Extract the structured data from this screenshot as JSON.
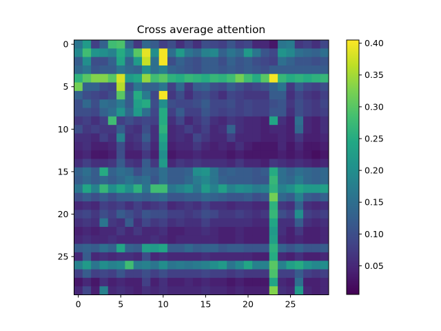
{
  "chart_data": {
    "type": "heatmap",
    "title": "Cross average attention",
    "xlabel": "",
    "ylabel": "",
    "colormap": "viridis",
    "color_range": [
      0.005,
      0.405
    ],
    "rows": 30,
    "cols": 30,
    "x_ticks": [
      0,
      5,
      10,
      15,
      20,
      25
    ],
    "y_ticks": [
      0,
      5,
      10,
      15,
      20,
      25
    ],
    "colorbar_ticks": [
      "0.05",
      "0.10",
      "0.15",
      "0.20",
      "0.25",
      "0.30",
      "0.35",
      "0.40"
    ],
    "colorbar_tick_values": [
      0.05,
      0.1,
      0.15,
      0.2,
      0.25,
      0.3,
      0.35,
      0.4
    ],
    "values": [
      [
        0.16,
        0.22,
        0.08,
        0.13,
        0.28,
        0.29,
        0.13,
        0.07,
        0.14,
        0.12,
        0.08,
        0.1,
        0.06,
        0.09,
        0.06,
        0.1,
        0.09,
        0.08,
        0.11,
        0.08,
        0.09,
        0.05,
        0.05,
        0.03,
        0.16,
        0.17,
        0.07,
        0.08,
        0.06,
        0.09
      ],
      [
        0.19,
        0.28,
        0.21,
        0.2,
        0.18,
        0.25,
        0.19,
        0.3,
        0.39,
        0.2,
        0.4,
        0.15,
        0.22,
        0.16,
        0.14,
        0.18,
        0.19,
        0.13,
        0.16,
        0.14,
        0.22,
        0.16,
        0.11,
        0.09,
        0.21,
        0.19,
        0.15,
        0.14,
        0.13,
        0.15
      ],
      [
        0.12,
        0.2,
        0.1,
        0.1,
        0.13,
        0.24,
        0.13,
        0.22,
        0.37,
        0.15,
        0.4,
        0.1,
        0.13,
        0.11,
        0.1,
        0.12,
        0.12,
        0.1,
        0.13,
        0.11,
        0.12,
        0.1,
        0.09,
        0.08,
        0.15,
        0.13,
        0.11,
        0.11,
        0.1,
        0.11
      ],
      [
        0.14,
        0.16,
        0.11,
        0.12,
        0.12,
        0.16,
        0.14,
        0.13,
        0.2,
        0.15,
        0.18,
        0.13,
        0.12,
        0.11,
        0.1,
        0.12,
        0.12,
        0.11,
        0.12,
        0.11,
        0.12,
        0.11,
        0.1,
        0.12,
        0.12,
        0.12,
        0.12,
        0.12,
        0.12,
        0.12
      ],
      [
        0.26,
        0.3,
        0.33,
        0.33,
        0.3,
        0.38,
        0.22,
        0.24,
        0.34,
        0.28,
        0.3,
        0.26,
        0.25,
        0.27,
        0.26,
        0.25,
        0.27,
        0.26,
        0.28,
        0.32,
        0.28,
        0.25,
        0.3,
        0.4,
        0.27,
        0.25,
        0.26,
        0.25,
        0.26,
        0.27
      ],
      [
        0.32,
        0.13,
        0.13,
        0.1,
        0.09,
        0.36,
        0.1,
        0.16,
        0.13,
        0.13,
        0.16,
        0.08,
        0.14,
        0.07,
        0.12,
        0.13,
        0.1,
        0.09,
        0.12,
        0.1,
        0.08,
        0.09,
        0.1,
        0.13,
        0.16,
        0.07,
        0.12,
        0.09,
        0.08,
        0.1
      ],
      [
        0.13,
        0.1,
        0.09,
        0.08,
        0.1,
        0.3,
        0.12,
        0.25,
        0.17,
        0.09,
        0.4,
        0.07,
        0.1,
        0.06,
        0.09,
        0.1,
        0.08,
        0.06,
        0.09,
        0.08,
        0.07,
        0.07,
        0.07,
        0.12,
        0.12,
        0.06,
        0.09,
        0.07,
        0.06,
        0.08
      ],
      [
        0.1,
        0.14,
        0.1,
        0.15,
        0.14,
        0.17,
        0.12,
        0.23,
        0.25,
        0.1,
        0.2,
        0.1,
        0.09,
        0.09,
        0.1,
        0.12,
        0.09,
        0.09,
        0.1,
        0.08,
        0.09,
        0.08,
        0.08,
        0.1,
        0.11,
        0.07,
        0.1,
        0.08,
        0.07,
        0.09
      ],
      [
        0.1,
        0.1,
        0.09,
        0.13,
        0.15,
        0.21,
        0.14,
        0.22,
        0.15,
        0.09,
        0.25,
        0.08,
        0.12,
        0.08,
        0.08,
        0.11,
        0.09,
        0.08,
        0.09,
        0.08,
        0.09,
        0.08,
        0.08,
        0.11,
        0.11,
        0.06,
        0.1,
        0.08,
        0.07,
        0.08
      ],
      [
        0.07,
        0.08,
        0.06,
        0.08,
        0.28,
        0.08,
        0.1,
        0.08,
        0.09,
        0.08,
        0.25,
        0.06,
        0.09,
        0.05,
        0.07,
        0.09,
        0.06,
        0.05,
        0.07,
        0.06,
        0.05,
        0.05,
        0.04,
        0.24,
        0.06,
        0.04,
        0.15,
        0.05,
        0.04,
        0.06
      ],
      [
        0.1,
        0.07,
        0.08,
        0.07,
        0.07,
        0.12,
        0.07,
        0.06,
        0.1,
        0.06,
        0.26,
        0.05,
        0.06,
        0.08,
        0.06,
        0.08,
        0.05,
        0.06,
        0.13,
        0.06,
        0.05,
        0.05,
        0.04,
        0.05,
        0.05,
        0.04,
        0.14,
        0.05,
        0.04,
        0.06
      ],
      [
        0.06,
        0.06,
        0.05,
        0.08,
        0.06,
        0.18,
        0.06,
        0.07,
        0.12,
        0.06,
        0.24,
        0.05,
        0.06,
        0.05,
        0.09,
        0.07,
        0.05,
        0.05,
        0.08,
        0.05,
        0.05,
        0.05,
        0.04,
        0.04,
        0.05,
        0.04,
        0.07,
        0.04,
        0.04,
        0.05
      ],
      [
        0.05,
        0.06,
        0.04,
        0.04,
        0.05,
        0.1,
        0.05,
        0.06,
        0.09,
        0.05,
        0.22,
        0.04,
        0.05,
        0.05,
        0.07,
        0.05,
        0.04,
        0.05,
        0.04,
        0.06,
        0.04,
        0.03,
        0.03,
        0.03,
        0.05,
        0.03,
        0.05,
        0.03,
        0.03,
        0.04
      ],
      [
        0.04,
        0.05,
        0.03,
        0.03,
        0.04,
        0.1,
        0.04,
        0.04,
        0.07,
        0.04,
        0.2,
        0.03,
        0.04,
        0.04,
        0.05,
        0.04,
        0.04,
        0.04,
        0.03,
        0.04,
        0.03,
        0.03,
        0.03,
        0.03,
        0.04,
        0.03,
        0.04,
        0.03,
        0.02,
        0.03
      ],
      [
        0.06,
        0.08,
        0.06,
        0.06,
        0.07,
        0.12,
        0.07,
        0.06,
        0.12,
        0.07,
        0.22,
        0.05,
        0.07,
        0.06,
        0.07,
        0.06,
        0.06,
        0.06,
        0.05,
        0.07,
        0.05,
        0.05,
        0.04,
        0.07,
        0.06,
        0.05,
        0.06,
        0.05,
        0.04,
        0.05
      ],
      [
        0.13,
        0.15,
        0.12,
        0.25,
        0.13,
        0.15,
        0.14,
        0.1,
        0.13,
        0.12,
        0.15,
        0.12,
        0.12,
        0.13,
        0.2,
        0.21,
        0.16,
        0.12,
        0.13,
        0.12,
        0.12,
        0.11,
        0.12,
        0.25,
        0.15,
        0.13,
        0.15,
        0.14,
        0.13,
        0.14
      ],
      [
        0.12,
        0.14,
        0.12,
        0.14,
        0.12,
        0.14,
        0.16,
        0.14,
        0.15,
        0.11,
        0.15,
        0.12,
        0.12,
        0.14,
        0.17,
        0.19,
        0.16,
        0.13,
        0.12,
        0.12,
        0.12,
        0.11,
        0.11,
        0.27,
        0.15,
        0.14,
        0.17,
        0.14,
        0.13,
        0.14
      ],
      [
        0.16,
        0.24,
        0.18,
        0.27,
        0.2,
        0.24,
        0.2,
        0.26,
        0.16,
        0.28,
        0.28,
        0.16,
        0.18,
        0.2,
        0.16,
        0.22,
        0.18,
        0.23,
        0.18,
        0.2,
        0.19,
        0.17,
        0.18,
        0.26,
        0.18,
        0.2,
        0.24,
        0.22,
        0.22,
        0.23
      ],
      [
        0.1,
        0.12,
        0.1,
        0.12,
        0.1,
        0.12,
        0.12,
        0.13,
        0.12,
        0.13,
        0.14,
        0.11,
        0.11,
        0.12,
        0.12,
        0.14,
        0.13,
        0.12,
        0.11,
        0.11,
        0.12,
        0.1,
        0.11,
        0.32,
        0.14,
        0.12,
        0.18,
        0.12,
        0.11,
        0.13
      ],
      [
        0.05,
        0.06,
        0.05,
        0.08,
        0.07,
        0.08,
        0.06,
        0.08,
        0.06,
        0.07,
        0.08,
        0.05,
        0.06,
        0.07,
        0.06,
        0.08,
        0.06,
        0.06,
        0.05,
        0.06,
        0.06,
        0.05,
        0.05,
        0.26,
        0.07,
        0.06,
        0.13,
        0.06,
        0.05,
        0.06
      ],
      [
        0.08,
        0.09,
        0.07,
        0.1,
        0.08,
        0.12,
        0.1,
        0.08,
        0.11,
        0.1,
        0.1,
        0.08,
        0.08,
        0.07,
        0.08,
        0.1,
        0.09,
        0.07,
        0.07,
        0.08,
        0.07,
        0.06,
        0.07,
        0.27,
        0.1,
        0.08,
        0.2,
        0.08,
        0.07,
        0.08
      ],
      [
        0.06,
        0.07,
        0.06,
        0.16,
        0.07,
        0.06,
        0.12,
        0.06,
        0.09,
        0.07,
        0.08,
        0.06,
        0.07,
        0.06,
        0.06,
        0.08,
        0.06,
        0.06,
        0.06,
        0.06,
        0.06,
        0.05,
        0.05,
        0.24,
        0.06,
        0.06,
        0.12,
        0.06,
        0.05,
        0.06
      ],
      [
        0.04,
        0.05,
        0.04,
        0.05,
        0.05,
        0.07,
        0.05,
        0.07,
        0.05,
        0.05,
        0.06,
        0.04,
        0.04,
        0.05,
        0.05,
        0.06,
        0.05,
        0.04,
        0.04,
        0.05,
        0.04,
        0.04,
        0.04,
        0.22,
        0.06,
        0.04,
        0.07,
        0.04,
        0.04,
        0.05
      ],
      [
        0.05,
        0.06,
        0.05,
        0.05,
        0.06,
        0.05,
        0.05,
        0.05,
        0.05,
        0.06,
        0.05,
        0.04,
        0.05,
        0.05,
        0.05,
        0.05,
        0.05,
        0.04,
        0.04,
        0.05,
        0.04,
        0.04,
        0.04,
        0.23,
        0.05,
        0.04,
        0.05,
        0.04,
        0.04,
        0.05
      ],
      [
        0.12,
        0.13,
        0.12,
        0.15,
        0.13,
        0.24,
        0.13,
        0.12,
        0.23,
        0.22,
        0.24,
        0.12,
        0.12,
        0.14,
        0.12,
        0.13,
        0.13,
        0.11,
        0.12,
        0.12,
        0.11,
        0.11,
        0.11,
        0.26,
        0.13,
        0.11,
        0.13,
        0.11,
        0.11,
        0.12
      ],
      [
        0.05,
        0.12,
        0.05,
        0.06,
        0.05,
        0.06,
        0.06,
        0.05,
        0.1,
        0.05,
        0.06,
        0.05,
        0.05,
        0.05,
        0.05,
        0.06,
        0.05,
        0.05,
        0.05,
        0.05,
        0.05,
        0.04,
        0.04,
        0.25,
        0.05,
        0.04,
        0.06,
        0.04,
        0.04,
        0.05
      ],
      [
        0.18,
        0.22,
        0.16,
        0.2,
        0.18,
        0.19,
        0.28,
        0.17,
        0.18,
        0.16,
        0.2,
        0.16,
        0.17,
        0.16,
        0.17,
        0.18,
        0.2,
        0.22,
        0.16,
        0.19,
        0.24,
        0.18,
        0.18,
        0.3,
        0.18,
        0.23,
        0.25,
        0.21,
        0.19,
        0.2
      ],
      [
        0.08,
        0.12,
        0.08,
        0.09,
        0.08,
        0.11,
        0.08,
        0.08,
        0.1,
        0.08,
        0.1,
        0.08,
        0.08,
        0.08,
        0.08,
        0.09,
        0.08,
        0.08,
        0.07,
        0.08,
        0.07,
        0.07,
        0.07,
        0.29,
        0.08,
        0.08,
        0.12,
        0.08,
        0.07,
        0.08
      ],
      [
        0.03,
        0.05,
        0.03,
        0.06,
        0.04,
        0.05,
        0.04,
        0.04,
        0.08,
        0.04,
        0.06,
        0.04,
        0.04,
        0.05,
        0.04,
        0.05,
        0.04,
        0.04,
        0.03,
        0.04,
        0.03,
        0.03,
        0.03,
        0.24,
        0.05,
        0.04,
        0.15,
        0.04,
        0.04,
        0.05
      ],
      [
        0.05,
        0.09,
        0.04,
        0.18,
        0.05,
        0.06,
        0.05,
        0.04,
        0.06,
        0.05,
        0.06,
        0.05,
        0.05,
        0.05,
        0.05,
        0.06,
        0.05,
        0.05,
        0.04,
        0.05,
        0.04,
        0.04,
        0.04,
        0.33,
        0.06,
        0.05,
        0.22,
        0.05,
        0.04,
        0.05
      ]
    ]
  }
}
